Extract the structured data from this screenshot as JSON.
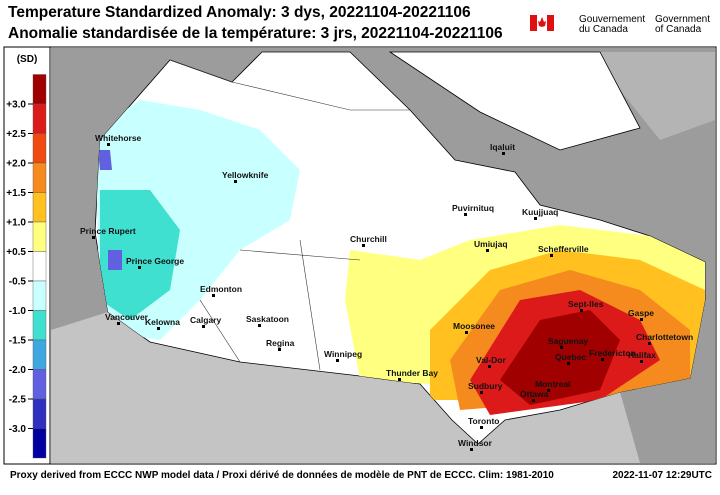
{
  "header": {
    "title_en": "Temperature Standardized Anomaly: 3 dys, 20221104-20221106",
    "title_fr": "Anomalie standardisée de la température: 3 jrs, 20221104-20221106",
    "gov_fr": [
      "Gouvernement",
      "du Canada"
    ],
    "gov_en": [
      "Government",
      "of Canada"
    ]
  },
  "legend": {
    "unit": "(SD)",
    "labels": [
      "+3.0",
      "+2.5",
      "+2.0",
      "+1.5",
      "+1.0",
      "+0.5",
      "-0.5",
      "-1.0",
      "-1.5",
      "-2.0",
      "-2.5",
      "-3.0"
    ]
  },
  "map": {
    "cities": [
      "Whitehorse",
      "Yellowknife",
      "Iqaluit",
      "Puvirnituq",
      "Kuujjuaq",
      "Prince Rupert",
      "Prince George",
      "Churchill",
      "Umiujaq",
      "Schefferville",
      "Edmonton",
      "Calgary",
      "Kelowna",
      "Vancouver",
      "Saskatoon",
      "Regina",
      "Winnipeg",
      "Sept-Iles",
      "Gaspe",
      "Charlottetown",
      "Moosonee",
      "Saguenay",
      "Quebec",
      "Fredericton",
      "Halifax",
      "Val-Dor",
      "Thunder Bay",
      "Sudbury",
      "Montreal",
      "Ottawa",
      "Toronto",
      "Windsor"
    ]
  },
  "footer": {
    "source": "Proxy derived from ECCC NWP model data / Proxi dérivé de données de modèle de PNT de ECCC. Clim: 1981-2010",
    "timestamp": "2022-11-07 12:29UTC"
  }
}
